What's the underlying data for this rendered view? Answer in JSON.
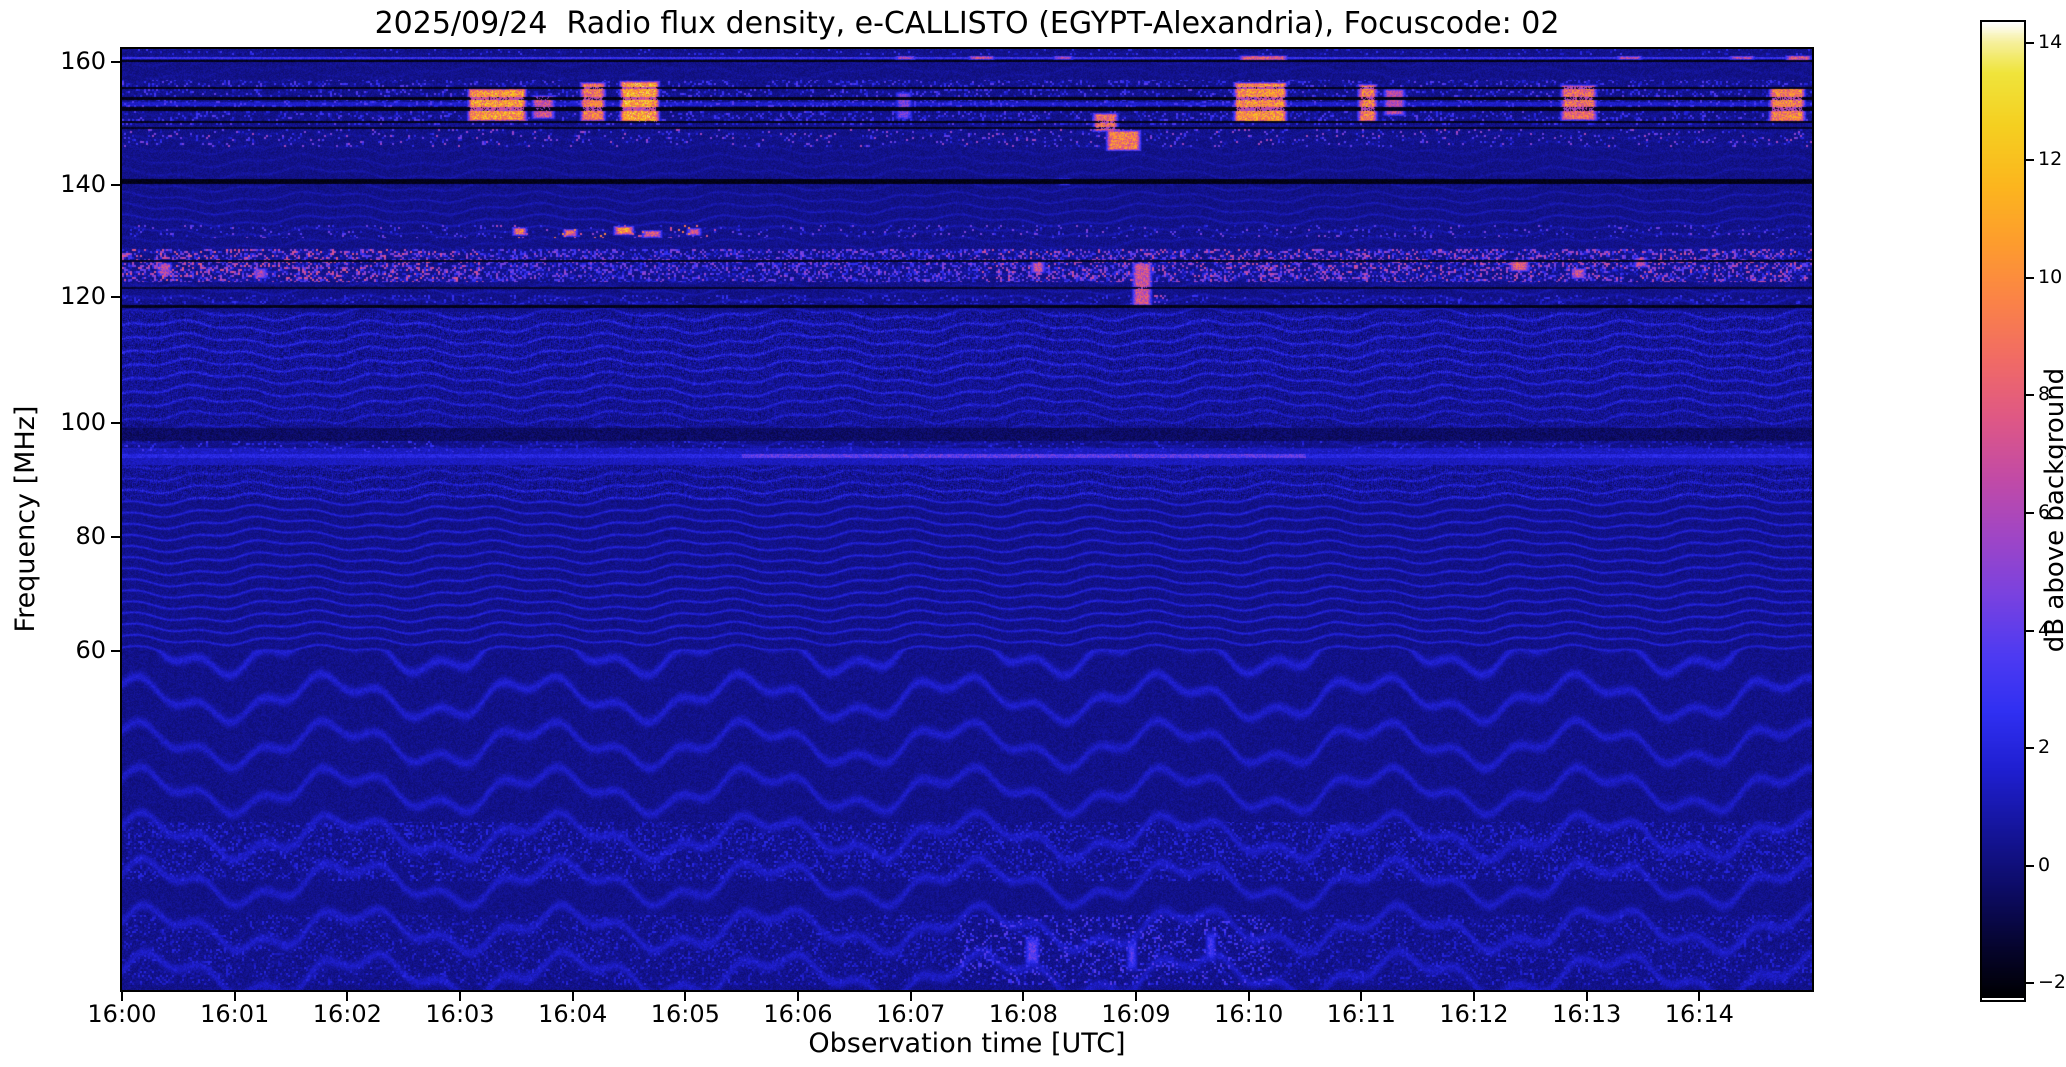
{
  "chart_data": {
    "type": "heatmap",
    "subtype": "radio-spectrogram",
    "title": "2025/09/24  Radio flux density, e-CALLISTO (EGYPT-Alexandria), Focuscode: 02",
    "xlabel": "Observation time [UTC]",
    "ylabel": "Frequency [MHz]",
    "x_range_utc": [
      "16:00",
      "16:15"
    ],
    "time_span_min": 15,
    "y_range_mhz": [
      45,
      164.3
    ],
    "x_ticks": {
      "labels": [
        "16:00",
        "16:01",
        "16:02",
        "16:03",
        "16:04",
        "16:05",
        "16:06",
        "16:07",
        "16:08",
        "16:09",
        "16:10",
        "16:11",
        "16:12",
        "16:13",
        "16:14"
      ],
      "minutes": [
        0,
        1,
        2,
        3,
        4,
        5,
        6,
        7,
        8,
        9,
        10,
        11,
        12,
        13,
        14
      ]
    },
    "y_ticks": {
      "labels": [
        "160",
        "140",
        "120",
        "100",
        "80",
        "60"
      ],
      "values": [
        160,
        140,
        120,
        100,
        80,
        60
      ]
    },
    "colorbar": {
      "label": "dB above background",
      "tick_labels": [
        "14",
        "12",
        "10",
        "8",
        "6",
        "4",
        "2",
        "0",
        "−2"
      ],
      "tick_values": [
        14,
        12,
        10,
        8,
        6,
        4,
        2,
        0,
        -2
      ],
      "vmin": -2.25,
      "vmax": 14.35
    },
    "grid": false,
    "legend": "none",
    "freq_axis_anchors": [
      [
        164.3,
        0.0
      ],
      [
        160,
        0.0138
      ],
      [
        140,
        0.1446
      ],
      [
        120,
        0.2636
      ],
      [
        100,
        0.3975
      ],
      [
        80,
        0.5186
      ],
      [
        60,
        0.6397
      ],
      [
        45,
        1.0
      ]
    ],
    "colormap_stops": [
      [
        -2.25,
        "#000003"
      ],
      [
        -1.4,
        "#06052e"
      ],
      [
        -0.4,
        "#0d0c66"
      ],
      [
        0.6,
        "#15159b"
      ],
      [
        1.6,
        "#1f1fd0"
      ],
      [
        2.6,
        "#3030f2"
      ],
      [
        3.6,
        "#4f3bf2"
      ],
      [
        4.6,
        "#7a42e0"
      ],
      [
        5.6,
        "#a046c6"
      ],
      [
        6.6,
        "#c34ba6"
      ],
      [
        7.6,
        "#df5886"
      ],
      [
        8.6,
        "#f16b66"
      ],
      [
        9.6,
        "#fb8348"
      ],
      [
        10.6,
        "#fe9d2e"
      ],
      [
        11.6,
        "#fcb71e"
      ],
      [
        12.6,
        "#f5d021"
      ],
      [
        13.5,
        "#f0e53c"
      ],
      [
        14.0,
        "#f6f09a"
      ],
      [
        14.35,
        "#ffffff"
      ]
    ],
    "background_noise_db": [
      -0.2,
      0.55
    ],
    "fringe_amplitude": [
      [
        164,
        0.15
      ],
      [
        146,
        0.2
      ],
      [
        134,
        0.5
      ],
      [
        129,
        0.25
      ],
      [
        122,
        0.3
      ],
      [
        118,
        0.55
      ],
      [
        117,
        0.85
      ],
      [
        104,
        0.85
      ],
      [
        99,
        0.5
      ],
      [
        96,
        0.4
      ],
      [
        92,
        0.5
      ],
      [
        88,
        0.9
      ],
      [
        62,
        0.9
      ],
      [
        56,
        0.7
      ],
      [
        45,
        0.65
      ]
    ],
    "features": [
      {
        "name": "carrier-161.5MHz",
        "kind": "bright_line",
        "f": [
          161.15,
          161.85
        ],
        "db": 3.0
      },
      {
        "name": "speckle-top-163MHz",
        "kind": "speckle",
        "f": [
          162.4,
          164.3
        ],
        "density": 0.1,
        "db": [
          0.3,
          3.0
        ]
      },
      {
        "name": "dark-160.5MHz",
        "kind": "dark_line",
        "f": [
          160.25,
          160.85
        ],
        "db": -2.1
      },
      {
        "name": "rfi-band-150-157MHz",
        "kind": "speckle",
        "f": [
          149.8,
          157.2
        ],
        "density": 0.25,
        "db": [
          0.3,
          4.0
        ]
      },
      {
        "name": "carrier-153.3MHz",
        "kind": "bright_line",
        "f": [
          153.0,
          153.6
        ],
        "segments": [
          [
            0,
            15,
            1.6
          ]
        ]
      },
      {
        "name": "dark-150.3MHz",
        "kind": "dark_line",
        "f": [
          150.1,
          150.5
        ],
        "db": -2.0
      },
      {
        "name": "dark-152.4MHz",
        "kind": "dark_line",
        "f": [
          152.15,
          152.75
        ],
        "db": -2.1
      },
      {
        "name": "dark-154.1MHz",
        "kind": "dark_line",
        "f": [
          153.85,
          154.4
        ],
        "db": -2.1
      },
      {
        "name": "dark-155.9MHz",
        "kind": "dark_line",
        "f": [
          155.7,
          156.05
        ],
        "db": -2.0
      },
      {
        "name": "speckle-147-149MHz",
        "kind": "speckle",
        "f": [
          146.3,
          149.1
        ],
        "density": 0.12,
        "db": [
          0.3,
          6.0
        ]
      },
      {
        "name": "dark-149.3MHz",
        "kind": "dark_line",
        "f": [
          149.15,
          149.55
        ],
        "db": -1.8
      },
      {
        "name": "dark-140.6MHz",
        "kind": "dark_line",
        "f": [
          140.2,
          141.0
        ],
        "db": -2.1
      },
      {
        "name": "carrier-140.6MHz",
        "kind": "bright_line",
        "f": [
          140.3,
          140.9
        ],
        "segments": [
          [
            3.0,
            7.3,
            2.6
          ],
          [
            7.8,
            9.4,
            2.6
          ],
          [
            13.9,
            15,
            2.2
          ]
        ]
      },
      {
        "name": "speckle-131-133MHz",
        "kind": "speckle",
        "f": [
          130.6,
          133.0
        ],
        "density": 0.1,
        "db": [
          0.3,
          5.0
        ],
        "boosts": [
          [
            3.3,
            5.3,
            2.0
          ]
        ]
      },
      {
        "name": "dense-speckle-123-128MHz",
        "kind": "speckle",
        "f": [
          122.8,
          128.6
        ],
        "density": 0.45,
        "db": [
          0.3,
          5.5
        ],
        "boosts": [
          [
            0,
            3.2,
            1.4
          ],
          [
            7.6,
            15,
            1.3
          ]
        ]
      },
      {
        "name": "dark-126.4MHz",
        "kind": "dark_line",
        "f": [
          126.25,
          126.65
        ],
        "db": -1.9
      },
      {
        "name": "dark-121.7MHz",
        "kind": "dark_line",
        "f": [
          121.5,
          121.9
        ],
        "db": -1.6
      },
      {
        "name": "dark-118.6MHz",
        "kind": "dark_line",
        "f": [
          118.35,
          118.85
        ],
        "db": -2.0
      },
      {
        "name": "speckle-119-120MHz",
        "kind": "speckle",
        "f": [
          118.9,
          120.4
        ],
        "density": 0.2,
        "db": [
          0.3,
          3.0
        ],
        "boosts": [
          [
            8.8,
            9.3,
            2.2
          ]
        ]
      },
      {
        "name": "texture-108-117MHz",
        "kind": "texture",
        "f": [
          107.5,
          117.6
        ],
        "amp": 1.0
      },
      {
        "name": "texture-99-107MHz",
        "kind": "texture",
        "f": [
          99.3,
          107.5
        ],
        "amp": 0.75
      },
      {
        "name": "dark-band-97-99MHz",
        "kind": "dark_band",
        "f": [
          96.9,
          99.2
        ],
        "db": -1.0
      },
      {
        "name": "speckle-95-97MHz",
        "kind": "speckle",
        "f": [
          95.0,
          96.9
        ],
        "density": 0.15,
        "db": [
          0.3,
          2.6
        ],
        "boosts": [
          [
            0,
            3.0,
            1.3
          ]
        ]
      },
      {
        "name": "bright-band-93-95MHz",
        "kind": "bright_band",
        "f": [
          92.6,
          95.6
        ],
        "db": 1.6
      },
      {
        "name": "carrier-94.2MHz",
        "kind": "bright_line",
        "f": [
          93.95,
          94.5
        ],
        "segments": [
          [
            0,
            15,
            2.3
          ],
          [
            5.5,
            10.5,
            4.2
          ]
        ]
      },
      {
        "name": "texture-87-93MHz",
        "kind": "texture",
        "f": [
          86.5,
          92.6
        ],
        "amp": 0.85
      },
      {
        "name": "speckle-50-52MHz",
        "kind": "speckle",
        "f": [
          49.8,
          52.4
        ],
        "density": 0.3,
        "db": [
          0.2,
          2.4
        ]
      },
      {
        "name": "speckle-45-48MHz",
        "kind": "speckle",
        "f": [
          45.2,
          48.3
        ],
        "density": 0.25,
        "db": [
          0.2,
          2.2
        ],
        "boosts": [
          [
            7.4,
            10.2,
            1.8
          ]
        ]
      }
    ],
    "bursts": [
      {
        "t": [
          3.05,
          3.6
        ],
        "f": [
          150.6,
          155.6
        ],
        "db": 13.5
      },
      {
        "t": [
          3.62,
          3.85
        ],
        "f": [
          151.0,
          154.5
        ],
        "db": 9
      },
      {
        "t": [
          4.05,
          4.3
        ],
        "f": [
          150.6,
          156.6
        ],
        "db": 12
      },
      {
        "t": [
          4.4,
          4.78
        ],
        "f": [
          150.4,
          156.8
        ],
        "db": 14
      },
      {
        "t": [
          6.85,
          7.02
        ],
        "f": [
          151.0,
          155.0
        ],
        "db": 6
      },
      {
        "t": [
          8.6,
          8.85
        ],
        "f": [
          148.9,
          151.6
        ],
        "db": 11
      },
      {
        "t": [
          8.72,
          9.05
        ],
        "f": [
          145.8,
          148.8
        ],
        "db": 12
      },
      {
        "t": [
          9.85,
          10.35
        ],
        "f": [
          150.4,
          156.6
        ],
        "db": 13
      },
      {
        "t": [
          10.95,
          11.15
        ],
        "f": [
          150.5,
          156.3
        ],
        "db": 12
      },
      {
        "t": [
          11.18,
          11.4
        ],
        "f": [
          151.5,
          155.5
        ],
        "db": 8
      },
      {
        "t": [
          12.75,
          13.1
        ],
        "f": [
          150.7,
          156.2
        ],
        "db": 11
      },
      {
        "t": [
          14.6,
          14.95
        ],
        "f": [
          150.4,
          155.8
        ],
        "db": 12
      },
      {
        "t": [
          6.85,
          7.05
        ],
        "f": [
          161.1,
          162.0
        ],
        "db": 8
      },
      {
        "t": [
          7.5,
          7.75
        ],
        "f": [
          161.1,
          162.0
        ],
        "db": 9
      },
      {
        "t": [
          8.25,
          8.45
        ],
        "f": [
          161.1,
          162.0
        ],
        "db": 8
      },
      {
        "t": [
          9.9,
          10.35
        ],
        "f": [
          160.9,
          162.1
        ],
        "db": 10
      },
      {
        "t": [
          13.25,
          13.5
        ],
        "f": [
          161.1,
          162.0
        ],
        "db": 8
      },
      {
        "t": [
          14.25,
          14.5
        ],
        "f": [
          161.1,
          162.0
        ],
        "db": 8
      },
      {
        "t": [
          14.75,
          15.0
        ],
        "f": [
          160.9,
          162.1
        ],
        "db": 10
      },
      {
        "t": [
          3.45,
          3.6
        ],
        "f": [
          131.2,
          132.3
        ],
        "db": 12
      },
      {
        "t": [
          3.9,
          4.05
        ],
        "f": [
          131.0,
          132.0
        ],
        "db": 11
      },
      {
        "t": [
          4.35,
          4.55
        ],
        "f": [
          131.3,
          132.5
        ],
        "db": 13
      },
      {
        "t": [
          4.6,
          4.8
        ],
        "f": [
          130.8,
          131.8
        ],
        "db": 10
      },
      {
        "t": [
          5.0,
          5.15
        ],
        "f": [
          131.2,
          132.2
        ],
        "db": 9
      },
      {
        "t": [
          0.3,
          0.45
        ],
        "f": [
          124.0,
          126.0
        ],
        "db": 8
      },
      {
        "t": [
          1.15,
          1.3
        ],
        "f": [
          123.5,
          125.0
        ],
        "db": 7
      },
      {
        "t": [
          8.05,
          8.2
        ],
        "f": [
          124.5,
          126.2
        ],
        "db": 9
      },
      {
        "t": [
          8.95,
          9.15
        ],
        "f": [
          118.8,
          126.0
        ],
        "db": 9
      },
      {
        "t": [
          12.3,
          12.5
        ],
        "f": [
          124.8,
          126.5
        ],
        "db": 10
      },
      {
        "t": [
          12.85,
          13.0
        ],
        "f": [
          123.5,
          125.0
        ],
        "db": 9
      },
      {
        "t": [
          13.4,
          13.55
        ],
        "f": [
          125.5,
          127.0
        ],
        "db": 8
      },
      {
        "t": [
          8.3,
          8.42
        ],
        "f": [
          140.2,
          141.0
        ],
        "db": 7
      },
      {
        "t": [
          8.0,
          8.15
        ],
        "f": [
          46.2,
          47.2
        ],
        "db": 5
      },
      {
        "t": [
          8.9,
          9.02
        ],
        "f": [
          46.0,
          47.0
        ],
        "db": 4.5
      },
      {
        "t": [
          9.6,
          9.72
        ],
        "f": [
          46.4,
          47.4
        ],
        "db": 4
      }
    ]
  }
}
